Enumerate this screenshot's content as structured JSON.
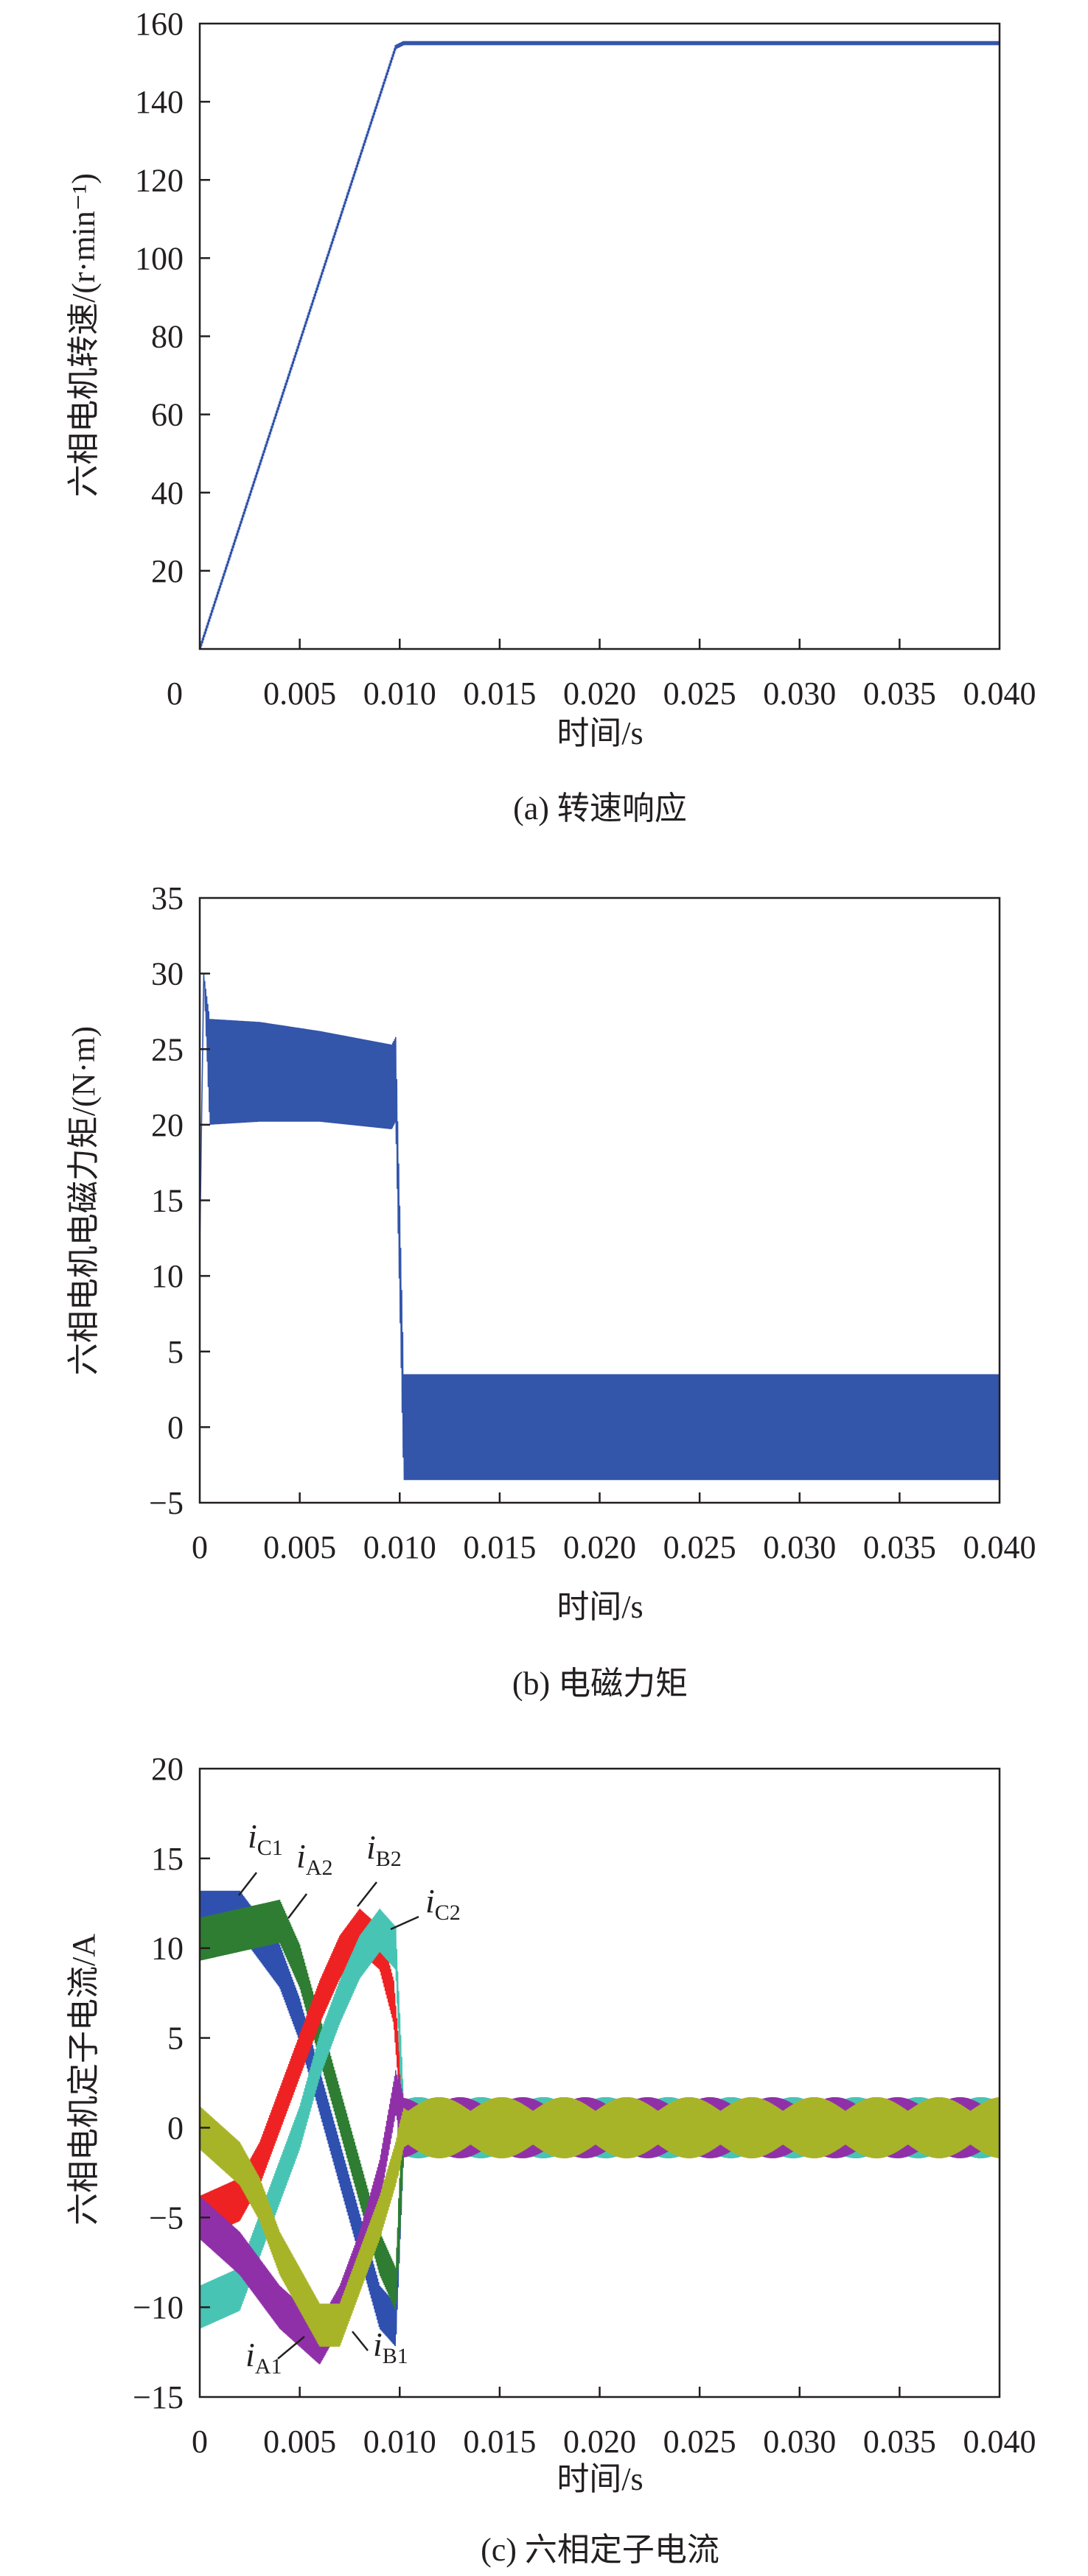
{
  "chart_data": [
    {
      "type": "line",
      "caption": "(a) 转速响应",
      "xlabel": "时间/s",
      "ylabel": "六相电机转速/(r·min⁻¹)",
      "xlim": [
        0,
        0.04
      ],
      "ylim": [
        0,
        160
      ],
      "xticks": [
        "0",
        "0.005",
        "0.010",
        "0.015",
        "0.020",
        "0.025",
        "0.030",
        "0.035",
        "0.040"
      ],
      "yticks": [
        "20",
        "40",
        "60",
        "80",
        "100",
        "120",
        "140",
        "160"
      ],
      "grid": false,
      "series": [
        {
          "color": "#3355aa",
          "x": [
            0,
            0.0098,
            0.0102,
            0.04
          ],
          "y": [
            0,
            154,
            155,
            155
          ],
          "ripple": 0.5
        }
      ]
    },
    {
      "type": "line",
      "caption": "(b) 电磁力矩",
      "xlabel": "时间/s",
      "ylabel": "六相电机电磁力矩/(N·m)",
      "xlim": [
        0,
        0.04
      ],
      "ylim": [
        -5,
        35
      ],
      "xticks": [
        "0",
        "0.005",
        "0.010",
        "0.015",
        "0.020",
        "0.025",
        "0.030",
        "0.035",
        "0.040"
      ],
      "yticks": [
        "−5",
        "0",
        "5",
        "10",
        "15",
        "20",
        "25",
        "30",
        "35"
      ],
      "grid": false,
      "series": [
        {
          "color": "#3355aa",
          "x": [
            0,
            0.0002,
            0.0005,
            0.003,
            0.006,
            0.0096,
            0.0098,
            0.0102,
            0.04
          ],
          "y": [
            12,
            30,
            23.5,
            23.5,
            23.2,
            22.5,
            23,
            0,
            0
          ],
          "ripple": [
            0,
            0,
            3.5,
            3.3,
            3,
            2.8,
            2.8,
            3.5,
            3.5
          ]
        }
      ]
    },
    {
      "type": "line",
      "caption": "(c) 六相定子电流",
      "xlabel": "时间/s",
      "ylabel": "六相电机定子电流/A",
      "xlim": [
        0,
        0.04
      ],
      "ylim": [
        -15,
        20
      ],
      "xticks": [
        "0",
        "0.005",
        "0.010",
        "0.015",
        "0.020",
        "0.025",
        "0.030",
        "0.035",
        "0.040"
      ],
      "yticks": [
        "−15",
        "−10",
        "−5",
        "0",
        "5",
        "10",
        "15",
        "20"
      ],
      "grid": false,
      "series": [
        {
          "name": "iC1",
          "label": "i",
          "sub": "C1",
          "color": "#3050b0",
          "x": [
            0,
            0.002,
            0.004,
            0.005,
            0.006,
            0.007,
            0.008,
            0.009,
            0.0098,
            0.0102,
            0.04
          ],
          "y": [
            12,
            12,
            9,
            6,
            2,
            -2,
            -6,
            -10,
            -11,
            0,
            0
          ]
        },
        {
          "name": "iA2",
          "label": "i",
          "sub": "A2",
          "color": "#2e7d32",
          "x": [
            0,
            0.002,
            0.004,
            0.005,
            0.006,
            0.007,
            0.008,
            0.009,
            0.0098,
            0.0102,
            0.04
          ],
          "y": [
            10.5,
            11,
            11.5,
            9,
            5,
            1,
            -3,
            -7,
            -9,
            0,
            0
          ]
        },
        {
          "name": "iB2",
          "label": "i",
          "sub": "B2",
          "color": "#ee2222",
          "x": [
            0,
            0.002,
            0.003,
            0.004,
            0.005,
            0.006,
            0.007,
            0.008,
            0.009,
            0.0097,
            0.0102,
            0.04
          ],
          "y": [
            -5,
            -4,
            -2,
            1,
            4,
            7,
            9.5,
            11,
            10,
            7,
            0,
            0
          ]
        },
        {
          "name": "iC2",
          "label": "i",
          "sub": "C2",
          "color": "#48c4b4",
          "x": [
            0,
            0.002,
            0.003,
            0.004,
            0.005,
            0.006,
            0.007,
            0.008,
            0.009,
            0.0098,
            0.0102,
            0.04
          ],
          "y": [
            -10,
            -9,
            -6,
            -3,
            0,
            4,
            7,
            9.5,
            11,
            10,
            0,
            0
          ]
        },
        {
          "name": "iA1",
          "label": "i",
          "sub": "A1",
          "color": "#9030a8",
          "x": [
            0,
            0.002,
            0.004,
            0.005,
            0.006,
            0.007,
            0.008,
            0.009,
            0.0098,
            0.0102,
            0.04
          ],
          "y": [
            -5,
            -7,
            -10,
            -11,
            -12,
            -10,
            -7,
            -3,
            2,
            0,
            0
          ]
        },
        {
          "name": "iB1",
          "label": "i",
          "sub": "B1",
          "color": "#a8b428",
          "x": [
            0,
            0.002,
            0.003,
            0.004,
            0.005,
            0.006,
            0.007,
            0.008,
            0.009,
            0.0098,
            0.0102,
            0.04
          ],
          "y": [
            0,
            -2,
            -4,
            -7,
            -9,
            -11,
            -11,
            -8,
            -5,
            -2,
            0,
            0
          ]
        }
      ],
      "ripple_before_0.010s": 1.2,
      "ripple_after_0.010s": 1.7
    }
  ]
}
